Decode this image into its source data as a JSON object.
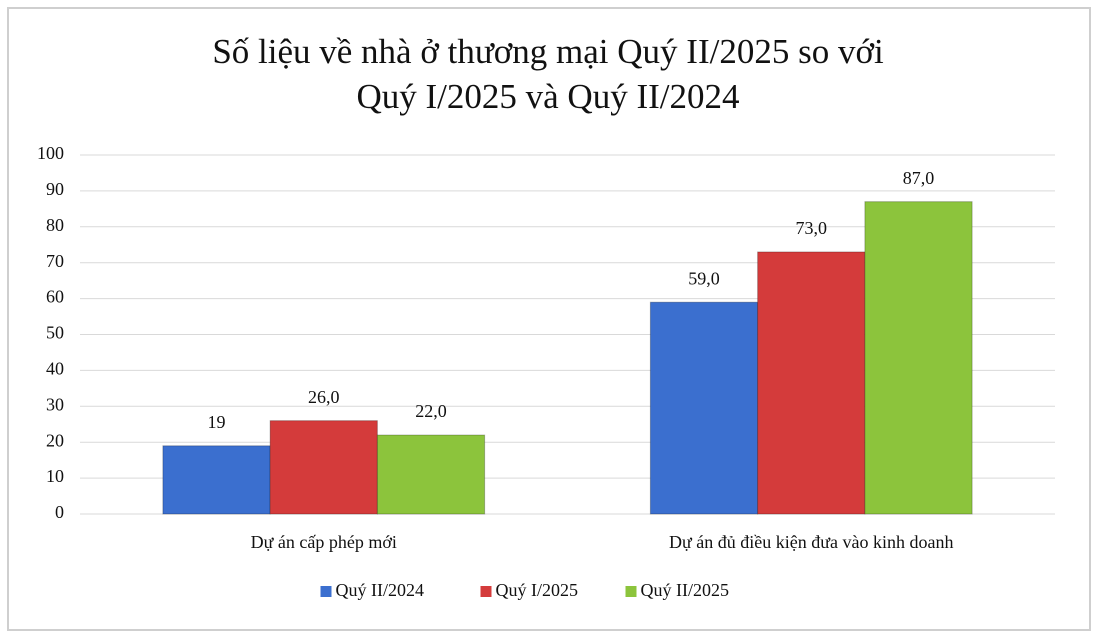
{
  "chart_data": {
    "type": "bar",
    "title": [
      "Số liệu về nhà ở thương mại Quý II/2025 so với",
      "Quý I/2025 và Quý II/2024"
    ],
    "categories": [
      "Dự án cấp phép mới",
      "Dự án đủ điều kiện đưa vào kinh doanh"
    ],
    "series": [
      {
        "name": "Quý II/2024",
        "color": "#3b6fcf",
        "values": [
          19,
          59
        ],
        "value_labels": [
          "19",
          "59,0"
        ]
      },
      {
        "name": "Quý I/2025",
        "color": "#d43b3b",
        "values": [
          26,
          73
        ],
        "value_labels": [
          "26,0",
          "73,0"
        ]
      },
      {
        "name": "Quý II/2025",
        "color": "#8cc43c",
        "values": [
          22,
          87
        ],
        "value_labels": [
          "22,0",
          "87,0"
        ]
      }
    ],
    "ylim": [
      0,
      100
    ],
    "yticks": [
      0,
      10,
      20,
      30,
      40,
      50,
      60,
      70,
      80,
      90,
      100
    ],
    "grid": true,
    "legend": "bottom"
  }
}
